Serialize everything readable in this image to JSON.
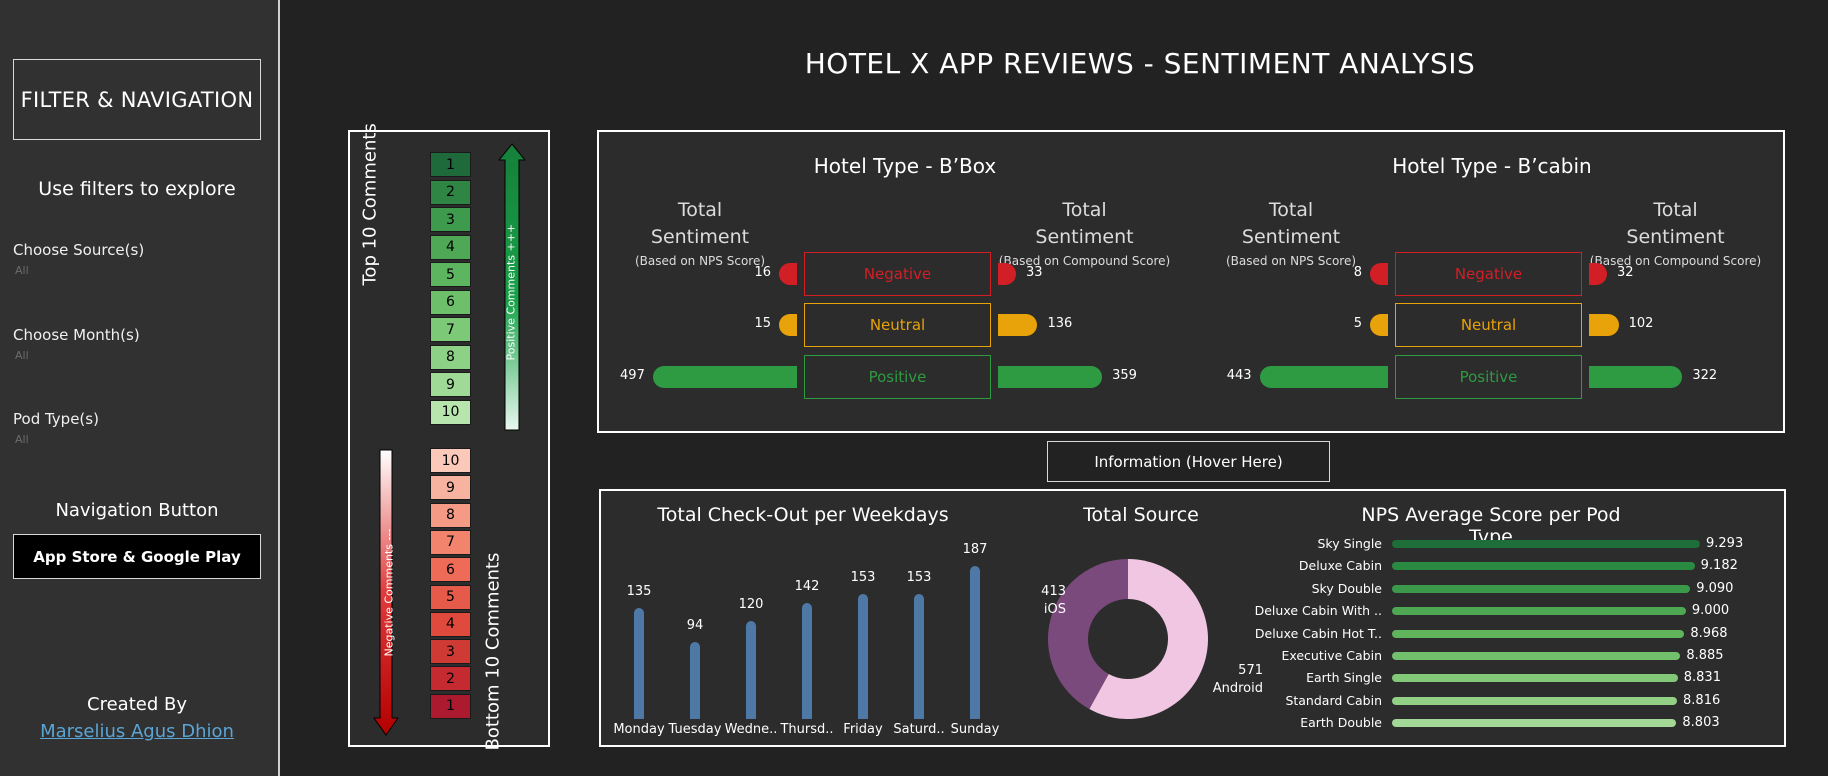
{
  "title": "HOTEL X APP REVIEWS - SENTIMENT ANALYSIS",
  "sidebar": {
    "filter_nav": "FILTER & NAVIGATION",
    "explore": "Use filters to explore",
    "filters": [
      {
        "label": "Choose Source(s)",
        "value": "All"
      },
      {
        "label": "Choose Month(s)",
        "value": "All"
      },
      {
        "label": "Pod Type(s)",
        "value": "All"
      }
    ],
    "nav_title": "Navigation Button",
    "nav_button": "App Store & Google Play",
    "created_by": "Created By",
    "author": "Marselius Agus Dhion"
  },
  "ranking": {
    "top_label": "Top 10 Comments",
    "bottom_label": "Bottom 10 Comments",
    "positive_label": "Positive Comments +++",
    "negative_label": "Negative Comments ---",
    "top": [
      "1",
      "2",
      "3",
      "4",
      "5",
      "6",
      "7",
      "8",
      "9",
      "10"
    ],
    "bottom": [
      "10",
      "9",
      "8",
      "7",
      "6",
      "5",
      "4",
      "3",
      "2",
      "1"
    ],
    "top_colors": [
      "#1f6a3a",
      "#2f8543",
      "#3e9a4d",
      "#4ea855",
      "#5db55f",
      "#6dbf6a",
      "#7cc977",
      "#8dd186",
      "#a0da97",
      "#b8e4ad"
    ],
    "bottom_colors": [
      "#fbc9b9",
      "#f8b3a0",
      "#f59b85",
      "#f2836c",
      "#ee6b57",
      "#e65a49",
      "#df4a3d",
      "#d03a35",
      "#c42a30",
      "#ac1a30"
    ],
    "colors": {
      "positive_arrow": "#1e8a3f",
      "negative_arrow": "#c00000"
    }
  },
  "sentiment": {
    "total_title": "Total",
    "sentiment_word": "Sentiment",
    "nps_sub": "(Based on NPS Score)",
    "compound_sub": "(Based on Compound Score)",
    "labels": [
      "Negative",
      "Neutral",
      "Positive"
    ],
    "colors": {
      "Negative": "#d21f26",
      "Neutral": "#e8a20a",
      "Positive": "#2e9a42"
    },
    "hotels": [
      {
        "name": "Hotel Type - B’Box",
        "nps": [
          16,
          15,
          497
        ],
        "compound": [
          33,
          136,
          359
        ]
      },
      {
        "name": "Hotel Type - B’cabin",
        "nps": [
          8,
          5,
          443
        ],
        "compound": [
          32,
          102,
          322
        ]
      }
    ]
  },
  "info_button": "Information (Hover Here)",
  "checkout": {
    "title": "Total Check-Out per Weekdays",
    "days": [
      "Monday",
      "Tuesday",
      "Wedne..",
      "Thursd..",
      "Friday",
      "Saturd..",
      "Sunday"
    ],
    "values": [
      135,
      94,
      120,
      142,
      153,
      153,
      187
    ],
    "color": "#4e79a7"
  },
  "source": {
    "title": "Total Source",
    "slices": [
      {
        "name": "iOS",
        "value": 413,
        "color": "#7b4a7d"
      },
      {
        "name": "Android",
        "value": 571,
        "color": "#f0c6e2"
      }
    ]
  },
  "nps": {
    "title": "NPS Average Score per Pod Type",
    "items": [
      {
        "label": "Sky Single",
        "value": 9.293,
        "text": "9.293",
        "color": "#1d6e38"
      },
      {
        "label": "Deluxe Cabin",
        "value": 9.182,
        "text": "9.182",
        "color": "#2b8a42"
      },
      {
        "label": "Sky Double",
        "value": 9.09,
        "text": "9.090",
        "color": "#3b9a49"
      },
      {
        "label": "Deluxe Cabin With ..",
        "value": 9.0,
        "text": "9.000",
        "color": "#4ea853"
      },
      {
        "label": "Deluxe Cabin Hot T..",
        "value": 8.968,
        "text": "8.968",
        "color": "#5fb45c"
      },
      {
        "label": "Executive Cabin",
        "value": 8.885,
        "text": "8.885",
        "color": "#72c06b"
      },
      {
        "label": "Earth Single",
        "value": 8.831,
        "text": "8.831",
        "color": "#83c879"
      },
      {
        "label": "Standard Cabin",
        "value": 8.816,
        "text": "8.816",
        "color": "#92d086"
      },
      {
        "label": "Earth Double",
        "value": 8.803,
        "text": "8.803",
        "color": "#a3d896"
      }
    ]
  }
}
